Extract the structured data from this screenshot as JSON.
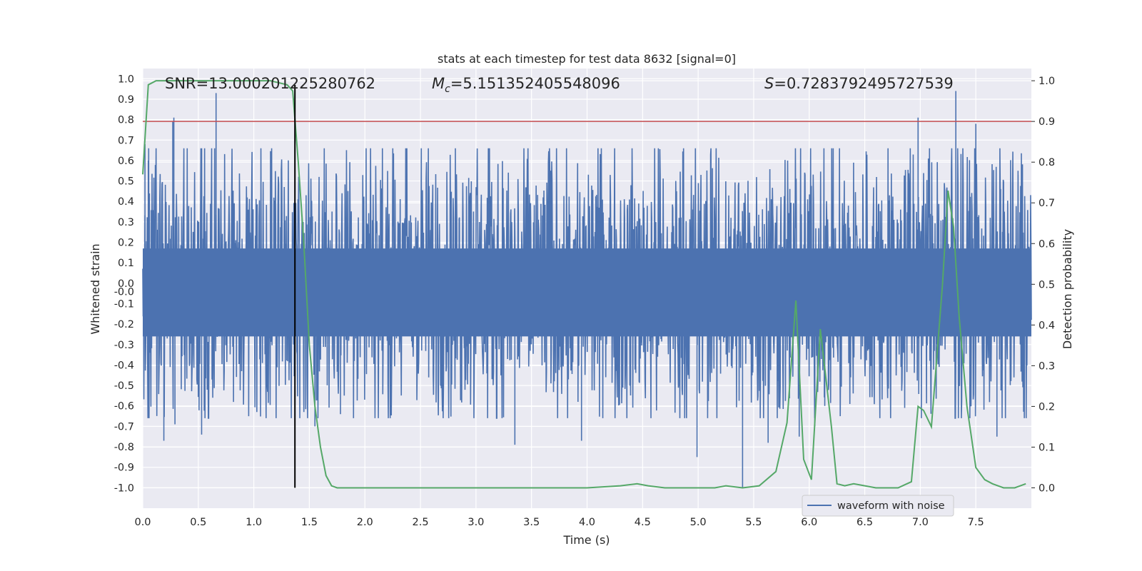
{
  "chart_data": {
    "type": "line",
    "title": "stats at each timestep for test data 8632 [signal=0]",
    "xlabel": "Time (s)",
    "ylabel": "Whitened strain",
    "y2label": "Detection probability",
    "xlim": [
      0.0,
      8.0
    ],
    "ylim": [
      -1.1,
      1.05
    ],
    "y2lim": [
      -0.05,
      1.03
    ],
    "xticks": [
      "0.0",
      "0.5",
      "1.0",
      "1.5",
      "2.0",
      "2.5",
      "3.0",
      "3.5",
      "4.0",
      "4.5",
      "5.0",
      "5.5",
      "6.0",
      "6.5",
      "7.0",
      "7.5"
    ],
    "yticks": [
      "1.0",
      "0.9",
      "0.8",
      "0.7",
      "0.6",
      "0.5",
      "0.4",
      "0.3",
      "0.2",
      "0.1",
      "0.0",
      "-0.0",
      "-0.1",
      "-0.2",
      "-0.3",
      "-0.4",
      "-0.5",
      "-0.6",
      "-0.7",
      "-0.8",
      "-0.9",
      "-1.0"
    ],
    "y2ticks": [
      "1.0",
      "0.9",
      "0.8",
      "0.7",
      "0.6",
      "0.5",
      "0.4",
      "0.3",
      "0.2",
      "0.1",
      "0.0"
    ],
    "annotations": {
      "snr_label": "SNR=13.000201225280762",
      "mc_symbol": "M",
      "mc_sub": "c",
      "mc_value": "=5.151352405548096",
      "s_symbol": "S",
      "s_value": "=0.7283792495727539"
    },
    "threshold": 0.9,
    "vertical_marker_x": 1.37,
    "legend": {
      "label": "waveform with noise",
      "placement": "lower-right"
    },
    "series": [
      {
        "name": "waveform with noise",
        "color": "#4c72b0",
        "axis": "left",
        "noise_amplitude": 0.33,
        "spikes": [
          {
            "x": 0.02,
            "y": 0.68
          },
          {
            "x": 0.05,
            "y": 0.6
          },
          {
            "x": 0.19,
            "y": -0.77
          },
          {
            "x": 0.27,
            "y": 0.79
          },
          {
            "x": 0.28,
            "y": 0.81
          },
          {
            "x": 0.29,
            "y": -0.69
          },
          {
            "x": 0.53,
            "y": -0.74
          },
          {
            "x": 0.66,
            "y": 0.93
          },
          {
            "x": 1.55,
            "y": -0.7
          },
          {
            "x": 1.78,
            "y": -0.64
          },
          {
            "x": 3.35,
            "y": -0.79
          },
          {
            "x": 3.95,
            "y": -0.77
          },
          {
            "x": 4.99,
            "y": -0.85
          },
          {
            "x": 5.4,
            "y": -1.0
          },
          {
            "x": 5.63,
            "y": -0.78
          },
          {
            "x": 5.91,
            "y": -0.75
          },
          {
            "x": 6.05,
            "y": -0.7
          },
          {
            "x": 6.14,
            "y": -0.6
          },
          {
            "x": 6.98,
            "y": 0.81
          },
          {
            "x": 7.32,
            "y": 0.94
          },
          {
            "x": 7.5,
            "y": 0.78
          },
          {
            "x": 7.69,
            "y": -0.75
          },
          {
            "x": 7.88,
            "y": 0.55
          }
        ]
      },
      {
        "name": "detection probability",
        "color": "#55a868",
        "axis": "right",
        "x": [
          0.0,
          0.05,
          0.12,
          0.2,
          0.4,
          0.6,
          0.8,
          1.0,
          1.15,
          1.3,
          1.35,
          1.4,
          1.45,
          1.5,
          1.55,
          1.6,
          1.65,
          1.7,
          1.75,
          1.85,
          2.0,
          2.5,
          3.0,
          3.5,
          4.0,
          4.3,
          4.45,
          4.55,
          4.7,
          5.0,
          5.15,
          5.25,
          5.4,
          5.55,
          5.7,
          5.8,
          5.88,
          5.95,
          6.02,
          6.1,
          6.2,
          6.25,
          6.32,
          6.4,
          6.5,
          6.6,
          6.8,
          6.92,
          6.98,
          7.03,
          7.1,
          7.2,
          7.25,
          7.3,
          7.35,
          7.42,
          7.5,
          7.58,
          7.65,
          7.75,
          7.85,
          7.95
        ],
        "y": [
          0.77,
          0.99,
          1.0,
          1.0,
          1.0,
          1.0,
          1.0,
          1.0,
          1.0,
          0.99,
          0.975,
          0.8,
          0.6,
          0.35,
          0.2,
          0.1,
          0.03,
          0.005,
          0.0,
          0.0,
          0.0,
          0.0,
          0.0,
          0.0,
          0.0,
          0.005,
          0.01,
          0.005,
          0.0,
          0.0,
          0.0,
          0.005,
          0.0,
          0.005,
          0.04,
          0.16,
          0.46,
          0.07,
          0.02,
          0.39,
          0.15,
          0.01,
          0.005,
          0.01,
          0.005,
          0.0,
          0.0,
          0.015,
          0.2,
          0.19,
          0.15,
          0.5,
          0.73,
          0.64,
          0.42,
          0.2,
          0.05,
          0.02,
          0.01,
          0.0,
          0.0,
          0.01
        ]
      },
      {
        "name": "threshold",
        "color": "#c44e52",
        "axis": "right",
        "x": [
          0.0,
          8.0
        ],
        "y": [
          0.9,
          0.9
        ]
      }
    ]
  }
}
